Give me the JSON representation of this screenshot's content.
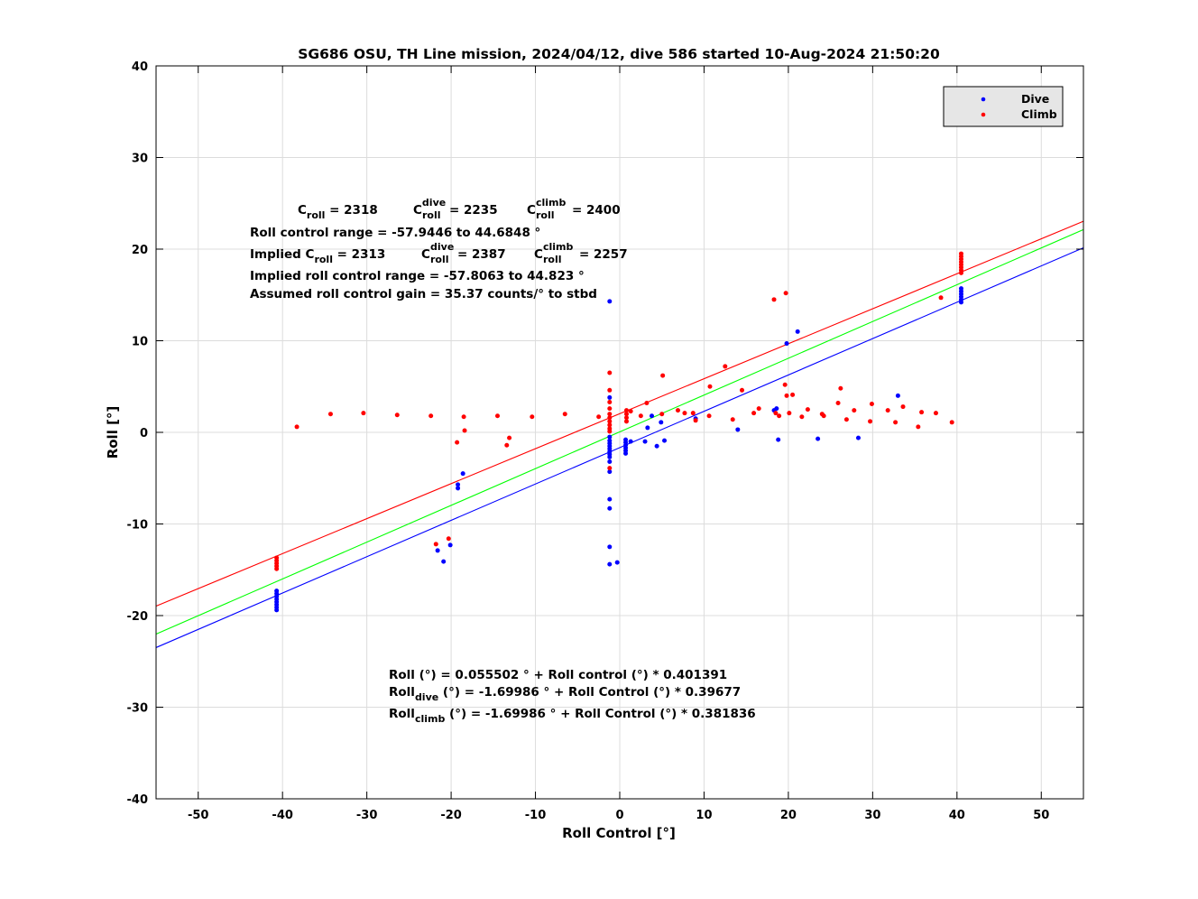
{
  "chart_data": {
    "type": "scatter",
    "title": "SG686 OSU, TH Line mission, 2024/04/12, dive 586 started 10-Aug-2024 21:50:20",
    "xlabel": "Roll Control [°]",
    "ylabel": "Roll [°]",
    "xlim": [
      -55,
      55
    ],
    "ylim": [
      -40,
      40
    ],
    "xticks": [
      -50,
      -40,
      -30,
      -20,
      -10,
      0,
      10,
      20,
      30,
      40,
      50
    ],
    "yticks": [
      -40,
      -30,
      -20,
      -10,
      0,
      10,
      20,
      30,
      40
    ],
    "grid": true,
    "legend_position": "top-right",
    "legend": [
      {
        "label": "Dive",
        "color": "#0000ff"
      },
      {
        "label": "Climb",
        "color": "#ff0000"
      }
    ],
    "series": [
      {
        "name": "Dive",
        "color": "#0000ff",
        "points": [
          [
            -40.7,
            -17.3
          ],
          [
            -40.7,
            -17.6
          ],
          [
            -40.7,
            -17.9
          ],
          [
            -40.7,
            -18.2
          ],
          [
            -40.7,
            -18.5
          ],
          [
            -40.7,
            -18.8
          ],
          [
            -40.7,
            -19.1
          ],
          [
            -40.7,
            -19.4
          ],
          [
            -1.2,
            14.3
          ],
          [
            -1.2,
            3.8
          ],
          [
            -1.2,
            -0.5
          ],
          [
            -1.2,
            -0.9
          ],
          [
            -1.2,
            -1.2
          ],
          [
            -1.2,
            -1.5
          ],
          [
            -1.2,
            -1.8
          ],
          [
            -1.2,
            -2.1
          ],
          [
            -1.2,
            -2.4
          ],
          [
            -1.2,
            -2.7
          ],
          [
            -1.2,
            -3.2
          ],
          [
            -1.2,
            -4.3
          ],
          [
            -1.2,
            -7.3
          ],
          [
            -1.2,
            -8.3
          ],
          [
            -1.2,
            -12.5
          ],
          [
            -1.2,
            -14.4
          ],
          [
            -0.3,
            -14.2
          ],
          [
            0.7,
            -0.8
          ],
          [
            0.7,
            -1.1
          ],
          [
            0.7,
            -1.4
          ],
          [
            0.7,
            -1.7
          ],
          [
            0.7,
            -2.0
          ],
          [
            0.7,
            -2.3
          ],
          [
            -18.6,
            -4.5
          ],
          [
            -19.2,
            -5.7
          ],
          [
            -19.2,
            -6.1
          ],
          [
            -21.6,
            -12.9
          ],
          [
            -20.9,
            -14.1
          ],
          [
            -20.1,
            -12.3
          ],
          [
            1.3,
            -1.0
          ],
          [
            3.0,
            -1.0
          ],
          [
            3.3,
            0.5
          ],
          [
            3.8,
            1.8
          ],
          [
            4.4,
            -1.5
          ],
          [
            4.9,
            1.1
          ],
          [
            5.3,
            -0.9
          ],
          [
            9.0,
            1.5
          ],
          [
            14.0,
            0.3
          ],
          [
            18.3,
            2.4
          ],
          [
            18.6,
            2.6
          ],
          [
            18.8,
            -0.8
          ],
          [
            19.8,
            9.7
          ],
          [
            21.1,
            11.0
          ],
          [
            23.5,
            -0.7
          ],
          [
            28.3,
            -0.6
          ],
          [
            33.0,
            4.0
          ],
          [
            40.5,
            15.7
          ],
          [
            40.5,
            15.4
          ],
          [
            40.5,
            15.1
          ],
          [
            40.5,
            14.8
          ],
          [
            40.5,
            14.5
          ],
          [
            40.5,
            14.2
          ]
        ]
      },
      {
        "name": "Climb",
        "color": "#ff0000",
        "points": [
          [
            -40.7,
            -13.7
          ],
          [
            -40.7,
            -14.0
          ],
          [
            -40.7,
            -14.3
          ],
          [
            -40.7,
            -14.6
          ],
          [
            -40.7,
            -14.9
          ],
          [
            -38.3,
            0.6
          ],
          [
            -34.3,
            2.0
          ],
          [
            -30.4,
            2.1
          ],
          [
            -26.4,
            1.9
          ],
          [
            -22.4,
            1.8
          ],
          [
            -21.8,
            -12.2
          ],
          [
            -20.3,
            -11.6
          ],
          [
            -19.3,
            -1.1
          ],
          [
            -18.5,
            1.7
          ],
          [
            -18.4,
            0.2
          ],
          [
            -14.5,
            1.8
          ],
          [
            -13.4,
            -1.4
          ],
          [
            -13.1,
            -0.6
          ],
          [
            -10.4,
            1.7
          ],
          [
            -6.5,
            2.0
          ],
          [
            -2.5,
            1.7
          ],
          [
            -1.2,
            6.5
          ],
          [
            -1.2,
            4.6
          ],
          [
            -1.2,
            3.3
          ],
          [
            -1.2,
            2.6
          ],
          [
            -1.2,
            2.0
          ],
          [
            -1.2,
            1.6
          ],
          [
            -1.2,
            1.2
          ],
          [
            -1.2,
            0.8
          ],
          [
            -1.2,
            0.4
          ],
          [
            -1.2,
            0.1
          ],
          [
            -1.2,
            -3.9
          ],
          [
            0.8,
            2.4
          ],
          [
            0.8,
            2.0
          ],
          [
            0.8,
            1.6
          ],
          [
            0.8,
            1.2
          ],
          [
            1.3,
            2.3
          ],
          [
            2.5,
            1.8
          ],
          [
            3.2,
            3.2
          ],
          [
            5.1,
            6.2
          ],
          [
            5.0,
            2.0
          ],
          [
            6.9,
            2.4
          ],
          [
            7.7,
            2.1
          ],
          [
            8.7,
            2.1
          ],
          [
            9.0,
            1.3
          ],
          [
            10.6,
            1.8
          ],
          [
            10.7,
            5.0
          ],
          [
            12.5,
            7.2
          ],
          [
            13.4,
            1.4
          ],
          [
            14.5,
            4.6
          ],
          [
            15.9,
            2.1
          ],
          [
            16.5,
            2.6
          ],
          [
            18.3,
            14.5
          ],
          [
            18.5,
            2.1
          ],
          [
            18.9,
            1.8
          ],
          [
            19.6,
            5.2
          ],
          [
            19.7,
            15.2
          ],
          [
            19.8,
            4.0
          ],
          [
            20.1,
            2.1
          ],
          [
            20.5,
            4.1
          ],
          [
            21.6,
            1.7
          ],
          [
            22.3,
            2.5
          ],
          [
            24.0,
            2.0
          ],
          [
            24.2,
            1.8
          ],
          [
            25.9,
            3.2
          ],
          [
            26.2,
            4.8
          ],
          [
            26.9,
            1.4
          ],
          [
            27.8,
            2.4
          ],
          [
            29.7,
            1.2
          ],
          [
            29.9,
            3.1
          ],
          [
            31.8,
            2.4
          ],
          [
            32.7,
            1.1
          ],
          [
            33.6,
            2.8
          ],
          [
            35.4,
            0.6
          ],
          [
            35.8,
            2.2
          ],
          [
            37.5,
            2.1
          ],
          [
            38.1,
            14.7
          ],
          [
            39.4,
            1.1
          ],
          [
            40.5,
            19.5
          ],
          [
            40.5,
            19.2
          ],
          [
            40.5,
            18.9
          ],
          [
            40.5,
            18.6
          ],
          [
            40.5,
            18.3
          ],
          [
            40.5,
            18.0
          ],
          [
            40.5,
            17.7
          ],
          [
            40.5,
            17.4
          ]
        ]
      }
    ],
    "fit_lines": [
      {
        "color": "#ff0000",
        "intercept": -1.69986,
        "slope": 0.381836,
        "ref_x": 40.5,
        "ref_y": 17.5
      },
      {
        "color": "#00ff00",
        "intercept": 0.055502,
        "slope": 0.401391
      },
      {
        "color": "#0000ff",
        "intercept": -1.69986,
        "slope": 0.39677,
        "ref_x": 40.5,
        "ref_y": 14.4
      }
    ],
    "annotations": {
      "line1": {
        "c": "C",
        "c_sub": "roll",
        "c_val": " = 2318",
        "d": "C",
        "d_sup": "dive",
        "d_sub": "roll",
        "d_val": " = 2235",
        "e": "C",
        "e_sup": "climb",
        "e_sub": "roll",
        "e_val": " = 2400"
      },
      "line2": "Roll control range = -57.9446 to 44.6848  °",
      "line3": {
        "pre": "Implied C",
        "c_sub": "roll",
        "c_val": " = 2313",
        "d": "C",
        "d_sup": "dive",
        "d_sub": "roll",
        "d_val": " = 2387",
        "e": "C",
        "e_sup": "climb",
        "e_sub": "roll",
        "e_val": " = 2257"
      },
      "line4": "Implied roll control range = -57.8063 to 44.823  °",
      "line5": "Assumed roll control gain = 35.37 counts/° to stbd",
      "fit1": "Roll (°) = 0.055502  ° + Roll control (°) * 0.401391",
      "fit2": {
        "pre": "Roll",
        "sub": "dive",
        "post": " (°) = -1.69986  ° + Roll Control (°) * 0.39677"
      },
      "fit3": {
        "pre": "Roll",
        "sub": "climb",
        "post": " (°) = -1.69986  ° + Roll Control (°) * 0.381836"
      }
    }
  }
}
